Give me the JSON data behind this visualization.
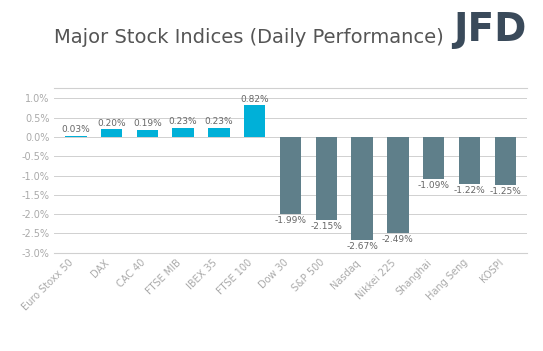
{
  "title": "Major Stock Indices (Daily Performance)",
  "categories": [
    "Euro Stoxx 50",
    "DAX",
    "CAC 40",
    "FTSE MIB",
    "IBEX 35",
    "FTSE 100",
    "Dow 30",
    "S&P 500",
    "Nasdaq",
    "Nikkei 225",
    "Shanghai",
    "Hang Seng",
    "KOSPI"
  ],
  "values": [
    0.03,
    0.2,
    0.19,
    0.23,
    0.23,
    0.82,
    -1.99,
    -2.15,
    -2.67,
    -2.49,
    -1.09,
    -1.22,
    -1.25
  ],
  "bar_colors_positive": "#00b0d8",
  "bar_colors_negative": "#5f7f8a",
  "ylim": [
    -3.0,
    1.0
  ],
  "yticks": [
    -3.0,
    -2.5,
    -2.0,
    -1.5,
    -1.0,
    -0.5,
    0.0,
    0.5,
    1.0
  ],
  "background_color": "#ffffff",
  "grid_color": "#d0d0d0",
  "title_fontsize": 14,
  "label_fontsize": 6.5,
  "tick_fontsize": 7,
  "logo_text": "JFD",
  "logo_color": "#3a4a5a",
  "logo_fontsize": 28,
  "title_color": "#555555",
  "tick_color": "#aaaaaa"
}
